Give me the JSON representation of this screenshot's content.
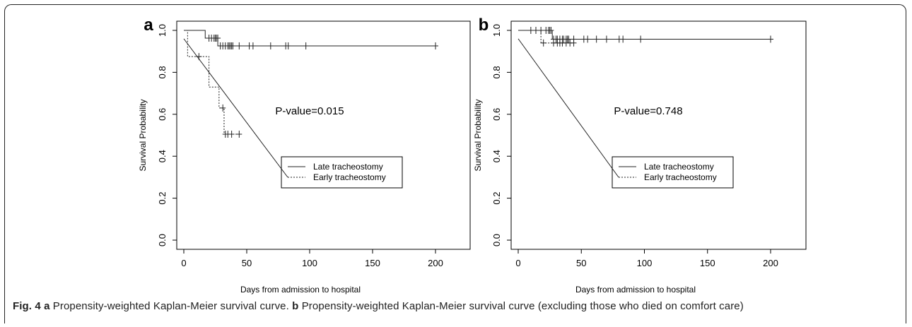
{
  "chart_data": [
    {
      "panel_letter": "a",
      "type": "line",
      "step": true,
      "xlabel": "Days from admission to hospital",
      "ylabel": "Survival Probability",
      "xlim": [
        0,
        200
      ],
      "ylim": [
        0,
        1
      ],
      "xticks": [
        0,
        50,
        100,
        150,
        200
      ],
      "yticks": [
        0.0,
        0.2,
        0.4,
        0.6,
        0.8,
        1.0
      ],
      "annotation": "P-value=0.015",
      "legend_position": "bottom-right",
      "series": [
        {
          "name": "Late tracheostomy",
          "line_style": "solid",
          "x": [
            0,
            17,
            17,
            27,
            27,
            200
          ],
          "y": [
            1.0,
            1.0,
            0.963,
            0.963,
            0.926,
            0.926
          ],
          "censor_x": [
            20,
            22,
            24,
            25,
            26,
            27,
            29,
            31,
            33,
            35,
            36,
            37,
            38,
            39,
            44,
            52,
            55,
            69,
            81,
            83,
            97,
            200
          ],
          "censor_y": [
            0.963,
            0.963,
            0.963,
            0.963,
            0.963,
            0.963,
            0.926,
            0.926,
            0.926,
            0.926,
            0.926,
            0.926,
            0.926,
            0.926,
            0.926,
            0.926,
            0.926,
            0.926,
            0.926,
            0.926,
            0.926,
            0.926
          ]
        },
        {
          "name": "Early tracheostomy",
          "line_style": "dotted",
          "x": [
            0,
            3,
            3,
            14,
            14,
            20,
            20,
            28,
            28,
            32,
            32,
            44
          ],
          "y": [
            1.0,
            1.0,
            0.875,
            0.875,
            0.875,
            0.875,
            0.73,
            0.73,
            0.63,
            0.63,
            0.505,
            0.505
          ],
          "censor_x": [
            12,
            31,
            33,
            35,
            38,
            44
          ],
          "censor_y": [
            0.875,
            0.63,
            0.505,
            0.505,
            0.505,
            0.505
          ]
        }
      ]
    },
    {
      "panel_letter": "b",
      "type": "line",
      "step": true,
      "xlabel": "Days from admission to hospital",
      "ylabel": "Survival Probability",
      "xlim": [
        0,
        200
      ],
      "ylim": [
        0,
        1
      ],
      "xticks": [
        0,
        50,
        100,
        150,
        200
      ],
      "yticks": [
        0.0,
        0.2,
        0.4,
        0.6,
        0.8,
        1.0
      ],
      "annotation": "P-value=0.748",
      "legend_position": "bottom-right",
      "series": [
        {
          "name": "Late tracheostomy",
          "line_style": "solid",
          "x": [
            0,
            27,
            27,
            200
          ],
          "y": [
            1.0,
            1.0,
            0.958,
            0.958
          ],
          "censor_x": [
            10,
            14,
            18,
            22,
            24,
            25,
            26,
            28,
            30,
            31,
            33,
            35,
            36,
            38,
            39,
            40,
            44,
            52,
            55,
            62,
            70,
            80,
            83,
            97,
            200
          ],
          "censor_y": [
            1.0,
            1.0,
            1.0,
            1.0,
            1.0,
            1.0,
            1.0,
            0.958,
            0.958,
            0.958,
            0.958,
            0.958,
            0.958,
            0.958,
            0.958,
            0.958,
            0.958,
            0.958,
            0.958,
            0.958,
            0.958,
            0.958,
            0.958,
            0.958,
            0.958
          ]
        },
        {
          "name": "Early tracheostomy",
          "line_style": "dotted",
          "x": [
            0,
            18,
            18,
            44
          ],
          "y": [
            1.0,
            1.0,
            0.94,
            0.94
          ],
          "censor_x": [
            20,
            28,
            31,
            33,
            35,
            38,
            41,
            44
          ],
          "censor_y": [
            0.94,
            0.94,
            0.94,
            0.94,
            0.94,
            0.94,
            0.94,
            0.94
          ]
        }
      ]
    }
  ],
  "caption": {
    "fig_label": "Fig. 4",
    "a_letter": "a",
    "a_text": " Propensity-weighted Kaplan-Meier survival curve. ",
    "b_letter": "b",
    "b_text": " Propensity-weighted Kaplan-Meier survival curve (excluding those who died on comfort care)"
  }
}
